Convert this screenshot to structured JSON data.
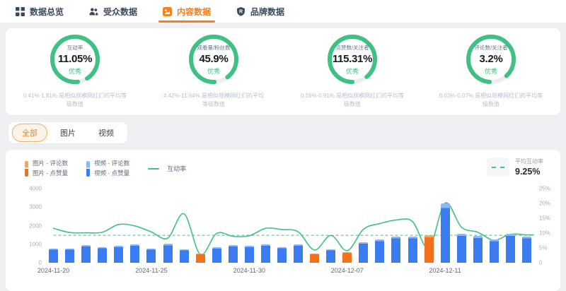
{
  "nav": {
    "tabs": [
      {
        "label": "数据总览",
        "icon": "grid-icon",
        "active": false
      },
      {
        "label": "受众数据",
        "icon": "audience-icon",
        "active": false
      },
      {
        "label": "内容数据",
        "icon": "content-icon",
        "active": true
      },
      {
        "label": "品牌数据",
        "icon": "brand-shield-icon",
        "active": false
      }
    ]
  },
  "gauges": [
    {
      "title": "互动率",
      "value": "11.05%",
      "badge": "优秀",
      "desc": "0.41%-1.81% 是相似规模网红们的平均等级数值",
      "ring_fill": 0.93
    },
    {
      "title": "观看量/粉丝数",
      "value": "45.9%",
      "badge": "优秀",
      "desc": "4.42%-11.64% 是相似规模网红们的平均等级数值",
      "ring_fill": 0.9
    },
    {
      "title": "点赞数/关注者",
      "value": "115.31%",
      "badge": "优秀",
      "desc": "0.16%-0.91% 是相似规模网红们的平均等级数值",
      "ring_fill": 0.89
    },
    {
      "title": "评论数/关注者",
      "value": "3.2%",
      "badge": "优秀",
      "desc": "0.03%-0.07% 是相似规模网红们的平均等级数值",
      "ring_fill": 0.87
    }
  ],
  "filters": {
    "items": [
      {
        "label": "全部",
        "active": true
      },
      {
        "label": "图片",
        "active": false
      },
      {
        "label": "视频",
        "active": false
      }
    ]
  },
  "legend": {
    "image": {
      "lines": [
        "图片 - 评论数",
        "图片 - 点赞量"
      ]
    },
    "video": {
      "lines": [
        "视频 - 评论数",
        "视频 - 点赞量"
      ]
    },
    "line": {
      "label": "互动率"
    }
  },
  "average": {
    "label": "平均互动率",
    "value": "9.25%"
  },
  "chart_data": {
    "type": "bar",
    "subtype": "stacked-bars-with-line",
    "title": "",
    "left_axis": {
      "ticks": [
        0,
        1000,
        2000,
        3000,
        4000
      ],
      "max": 4000
    },
    "right_axis": {
      "ticks_pct": [
        0,
        5,
        10,
        15,
        20,
        25
      ],
      "max": 25
    },
    "x_tick_labels": [
      {
        "index": 0,
        "label": "2024-11-20"
      },
      {
        "index": 6,
        "label": "2024-11-25"
      },
      {
        "index": 12,
        "label": "2024-11-30"
      },
      {
        "index": 18,
        "label": "2024-12-07"
      },
      {
        "index": 24,
        "label": "2024-12-11"
      }
    ],
    "bars": [
      {
        "type": "video",
        "likes": 700,
        "comments": 60
      },
      {
        "type": "video",
        "likes": 690,
        "comments": 60
      },
      {
        "type": "video",
        "likes": 890,
        "comments": 70
      },
      {
        "type": "video",
        "likes": 790,
        "comments": 65
      },
      {
        "type": "video",
        "likes": 860,
        "comments": 70
      },
      {
        "type": "video",
        "likes": 930,
        "comments": 80
      },
      {
        "type": "video",
        "likes": 710,
        "comments": 60
      },
      {
        "type": "video",
        "likes": 930,
        "comments": 90
      },
      {
        "type": "video",
        "likes": 680,
        "comments": 60
      },
      {
        "type": "image",
        "likes": 450,
        "comments": 40
      },
      {
        "type": "video",
        "likes": 760,
        "comments": 70
      },
      {
        "type": "video",
        "likes": 865,
        "comments": 75
      },
      {
        "type": "video",
        "likes": 830,
        "comments": 70
      },
      {
        "type": "video",
        "likes": 910,
        "comments": 80
      },
      {
        "type": "video",
        "likes": 775,
        "comments": 65
      },
      {
        "type": "video",
        "likes": 925,
        "comments": 75
      },
      {
        "type": "image",
        "likes": 460,
        "comments": 40
      },
      {
        "type": "video",
        "likes": 670,
        "comments": 55
      },
      {
        "type": "image",
        "likes": 515,
        "comments": 45
      },
      {
        "type": "video",
        "likes": 1020,
        "comments": 80
      },
      {
        "type": "video",
        "likes": 1160,
        "comments": 90
      },
      {
        "type": "video",
        "likes": 1300,
        "comments": 100
      },
      {
        "type": "video",
        "likes": 1300,
        "comments": 100
      },
      {
        "type": "image",
        "likes": 1390,
        "comments": 110
      },
      {
        "type": "video",
        "likes": 2950,
        "comments": 250
      },
      {
        "type": "video",
        "likes": 1440,
        "comments": 110
      },
      {
        "type": "video",
        "likes": 1340,
        "comments": 105
      },
      {
        "type": "video",
        "likes": 1160,
        "comments": 90
      },
      {
        "type": "video",
        "likes": 1440,
        "comments": 110
      },
      {
        "type": "video",
        "likes": 1300,
        "comments": 100
      }
    ],
    "line_series": {
      "name": "互动率",
      "unit": "%",
      "values": [
        11.6,
        10.2,
        10.1,
        10.3,
        12.9,
        12.4,
        10.4,
        8.3,
        16.5,
        2.8,
        9.9,
        8.9,
        9.1,
        11.6,
        11.2,
        10.4,
        4.3,
        9.2,
        4.1,
        11.3,
        13.2,
        14.4,
        13.9,
        5.0,
        20.1,
        12.0,
        10.3,
        7.6,
        9.6,
        9.4
      ]
    },
    "average_line": {
      "name": "平均互动率",
      "value_pct": 9.25
    },
    "colors": {
      "video_bar": "#3b7cf0",
      "video_bar_light": "#8ab9f8",
      "image_bar": "#f2711c",
      "image_bar_light": "#f6a55c",
      "line": "#3fc183",
      "average": "#3fc183",
      "gauge_ring": "#3fc183",
      "gauge_track": "#ebeef2",
      "accent": "#f2811d"
    }
  }
}
